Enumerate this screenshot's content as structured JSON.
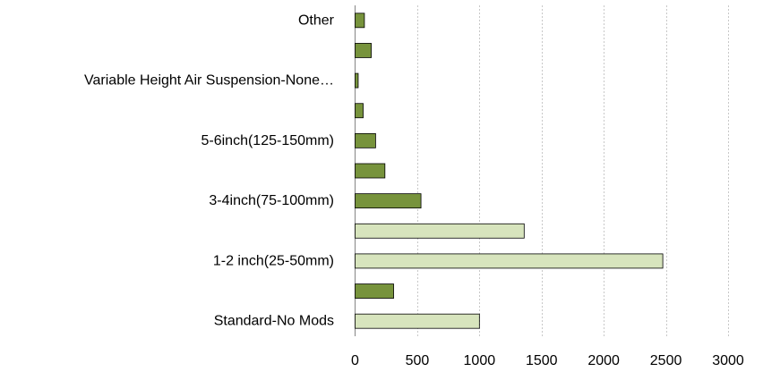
{
  "chart_data": {
    "type": "bar",
    "orientation": "horizontal",
    "title": "",
    "xlabel": "",
    "ylabel": "",
    "xlim": [
      0,
      3000
    ],
    "xticks": [
      0,
      500,
      1000,
      1500,
      2000,
      2500,
      3000
    ],
    "grid": "vertical dashed",
    "legend": "none",
    "categories": [
      {
        "label": "Other",
        "value": 75,
        "color": "#77933c"
      },
      {
        "label": "",
        "value": 130,
        "color": "#77933c"
      },
      {
        "label": "Variable Height Air Suspension-None…",
        "value": 25,
        "color": "#77933c"
      },
      {
        "label": "",
        "value": 65,
        "color": "#77933c"
      },
      {
        "label": "5-6inch(125-150mm)",
        "value": 165,
        "color": "#77933c"
      },
      {
        "label": "",
        "value": 240,
        "color": "#77933c"
      },
      {
        "label": "3-4inch(75-100mm)",
        "value": 530,
        "color": "#77933c"
      },
      {
        "label": "",
        "value": 1360,
        "color": "#d7e4bd"
      },
      {
        "label": "1-2 inch(25-50mm)",
        "value": 2475,
        "color": "#d7e4bd"
      },
      {
        "label": "",
        "value": 310,
        "color": "#77933c"
      },
      {
        "label": "Standard-No Mods",
        "value": 1000,
        "color": "#d7e4bd"
      }
    ]
  }
}
